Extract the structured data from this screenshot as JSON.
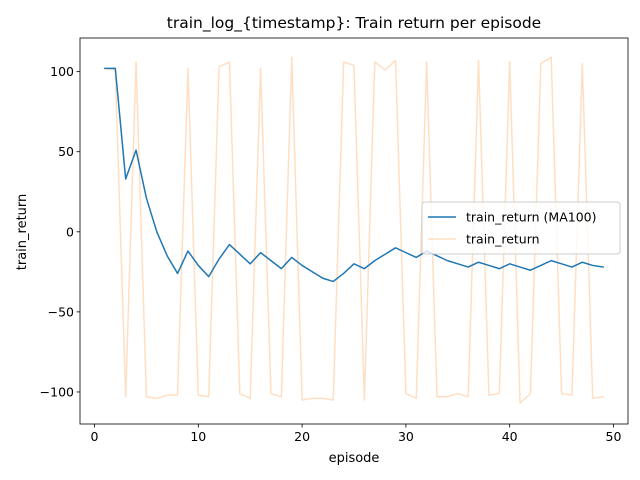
{
  "chart_data": {
    "type": "line",
    "title": "train_log_{timestamp}: Train return per episode",
    "xlabel": "episode",
    "ylabel": "train_return",
    "xlim": [
      -1.4,
      51.4
    ],
    "ylim": [
      -120,
      121
    ],
    "xticks": [
      0,
      10,
      20,
      30,
      40,
      50
    ],
    "yticks": [
      -100,
      -50,
      0,
      50,
      100
    ],
    "grid": false,
    "legend_position": "center-right",
    "series": [
      {
        "name": "train_return (MA100)",
        "color": "#1f77b4",
        "alpha": 1.0,
        "x": [
          1,
          2,
          3,
          4,
          5,
          6,
          7,
          8,
          9,
          10,
          11,
          12,
          13,
          14,
          15,
          16,
          17,
          18,
          19,
          20,
          21,
          22,
          23,
          24,
          25,
          26,
          27,
          28,
          29,
          30,
          31,
          32,
          33,
          34,
          35,
          36,
          37,
          38,
          39,
          40,
          41,
          42,
          43,
          44,
          45,
          46,
          47,
          48,
          49
        ],
        "values": [
          102,
          102,
          33,
          51,
          21,
          0,
          -15,
          -26,
          -12,
          -21,
          -28,
          -17,
          -8,
          -14,
          -20,
          -13,
          -18,
          -23,
          -16,
          -21,
          -25,
          -29,
          -31,
          -26,
          -20,
          -23,
          -18,
          -14,
          -10,
          -13,
          -16,
          -12,
          -15,
          -18,
          -20,
          -22,
          -19,
          -21,
          -23,
          -20,
          -22,
          -24,
          -21,
          -18,
          -20,
          -22,
          -19,
          -21,
          -22
        ]
      },
      {
        "name": "train_return",
        "color": "#ff7f0e",
        "alpha": 0.25,
        "x": [
          1,
          2,
          3,
          4,
          5,
          6,
          7,
          8,
          9,
          10,
          11,
          12,
          13,
          14,
          15,
          16,
          17,
          18,
          19,
          20,
          21,
          22,
          23,
          24,
          25,
          26,
          27,
          28,
          29,
          30,
          31,
          32,
          33,
          34,
          35,
          36,
          37,
          38,
          39,
          40,
          41,
          42,
          43,
          44,
          45,
          46,
          47,
          48,
          49
        ],
        "values": [
          102,
          101,
          -103,
          106,
          -103,
          -104,
          -102,
          -102,
          102,
          -102,
          -103,
          103,
          106,
          -101,
          -104,
          102,
          -101,
          -103,
          109,
          -105,
          -104,
          -104,
          -105,
          106,
          104,
          -105,
          106,
          101,
          107,
          -101,
          -104,
          106,
          -103,
          -103,
          -101,
          -103,
          107,
          -102,
          -101,
          106,
          -107,
          -101,
          105,
          109,
          -101,
          -102,
          105,
          -104,
          -103
        ]
      }
    ]
  }
}
